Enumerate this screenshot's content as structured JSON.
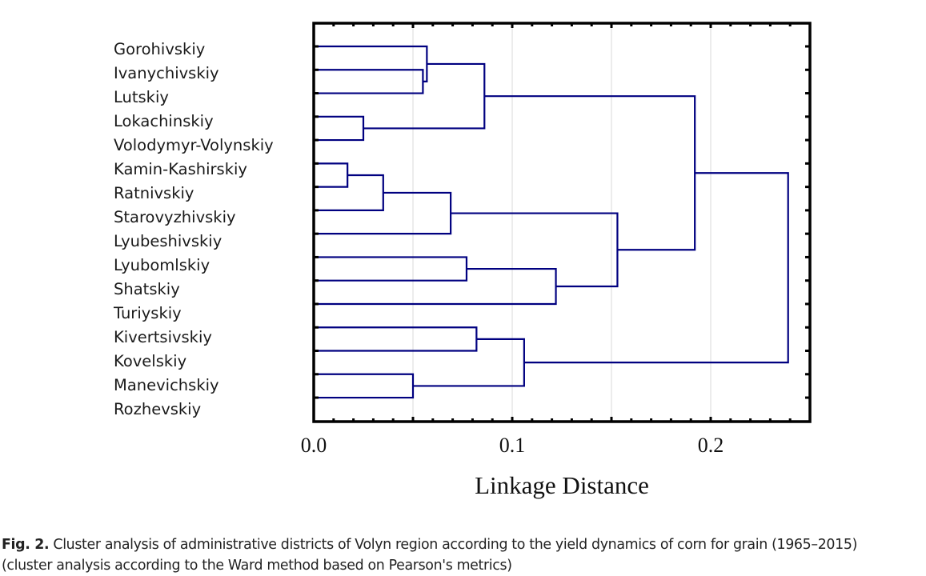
{
  "chart_data": {
    "type": "dendrogram",
    "orientation": "horizontal",
    "xlabel": "Linkage Distance",
    "xlim": [
      0.0,
      0.25
    ],
    "xticks": [
      0.0,
      0.1,
      0.2
    ],
    "xtick_labels": [
      "0.0",
      "0.1",
      "0.2"
    ],
    "grid_every": 0.05,
    "minor_tick_every": 0.01,
    "line_color": "#000080",
    "grid_color": "#e2e2e2",
    "leaves": [
      "Gorohivskiy",
      "Ivanychivskiy",
      "Lutskiy",
      "Lokachinskiy",
      "Volodymyr-Volynskiy",
      "Kamin-Kashirskiy",
      "Ratnivskiy",
      "Starovyzhivskiy",
      "Lyubeshivskiy",
      "Lyubomlskiy",
      "Shatskiy",
      "Turiyskiy",
      "Kivertsivskiy",
      "Kovelskiy",
      "Manevichskiy",
      "Rozhevskiy"
    ],
    "merges": [
      {
        "id": "m1",
        "left": 1,
        "right": 2,
        "distance": 0.055
      },
      {
        "id": "m2",
        "left": 0,
        "right": "m1",
        "distance": 0.057
      },
      {
        "id": "m3",
        "left": 3,
        "right": 4,
        "distance": 0.025
      },
      {
        "id": "m4",
        "left": "m2",
        "right": "m3",
        "distance": 0.086
      },
      {
        "id": "m5",
        "left": 5,
        "right": 6,
        "distance": 0.017
      },
      {
        "id": "m6",
        "left": "m5",
        "right": 7,
        "distance": 0.035
      },
      {
        "id": "m7",
        "left": "m6",
        "right": 8,
        "distance": 0.069
      },
      {
        "id": "m8",
        "left": 9,
        "right": 10,
        "distance": 0.077
      },
      {
        "id": "m9",
        "left": "m8",
        "right": 11,
        "distance": 0.122
      },
      {
        "id": "m10",
        "left": "m7",
        "right": "m9",
        "distance": 0.153
      },
      {
        "id": "m11",
        "left": "m4",
        "right": "m10",
        "distance": 0.192
      },
      {
        "id": "m12",
        "left": 12,
        "right": 13,
        "distance": 0.082
      },
      {
        "id": "m13",
        "left": 14,
        "right": 15,
        "distance": 0.05
      },
      {
        "id": "m14",
        "left": "m12",
        "right": "m13",
        "distance": 0.106
      },
      {
        "id": "m15",
        "left": "m11",
        "right": "m14",
        "distance": 0.239
      }
    ]
  },
  "caption": {
    "label": "Fig. 2.",
    "line1": " Cluster analysis of administrative districts of Volyn region according to the yield dynamics of corn for  grain (1965–2015)",
    "line2": "(cluster analysis according to the Ward method based on Pearson's metrics)"
  }
}
